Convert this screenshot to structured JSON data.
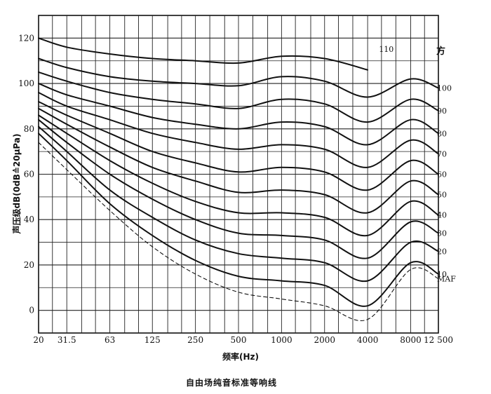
{
  "chart_data": {
    "type": "line",
    "title": "",
    "caption": "自由场纯音标准等响线",
    "xlabel": "频率(Hz)",
    "ylabel": "声压级dB(0dB≙20μPa)",
    "unit_label": "方",
    "x_scale": "log",
    "xlim": [
      20,
      12500
    ],
    "ylim": [
      -10,
      130
    ],
    "grid": true,
    "x_ticks": [
      {
        "value": 20,
        "label": "20"
      },
      {
        "value": 31.5,
        "label": "31.5"
      },
      {
        "value": 63,
        "label": "63"
      },
      {
        "value": 125,
        "label": "125"
      },
      {
        "value": 250,
        "label": "250"
      },
      {
        "value": 500,
        "label": "500"
      },
      {
        "value": 1000,
        "label": "1000"
      },
      {
        "value": 2000,
        "label": "2000"
      },
      {
        "value": 4000,
        "label": "4000"
      },
      {
        "value": 8000,
        "label": "8000"
      },
      {
        "value": 12500,
        "label": "12 500"
      }
    ],
    "y_ticks": [
      0,
      20,
      40,
      60,
      80,
      100,
      120
    ],
    "x": [
      20,
      31.5,
      63,
      125,
      250,
      500,
      1000,
      2000,
      4000,
      8000,
      12500
    ],
    "series": [
      {
        "name": "MAF",
        "dashed": true,
        "values": [
          74,
          62,
          44,
          28,
          16,
          8,
          5,
          2,
          -4,
          18,
          14
        ]
      },
      {
        "name": "10",
        "values": [
          78,
          66,
          47,
          33,
          22,
          15,
          13,
          11,
          2,
          21,
          16
        ]
      },
      {
        "name": "20",
        "values": [
          81,
          70,
          53,
          41,
          31,
          25,
          23,
          21,
          13,
          30,
          26
        ]
      },
      {
        "name": "30",
        "values": [
          84,
          74,
          60,
          49,
          40,
          34,
          33,
          31,
          23,
          39,
          34
        ]
      },
      {
        "name": "40",
        "values": [
          86,
          78,
          66,
          56,
          48,
          43,
          43,
          41,
          33,
          48,
          42
        ]
      },
      {
        "name": "50",
        "values": [
          89,
          82,
          72,
          63,
          57,
          52,
          53,
          51,
          43,
          57,
          51
        ]
      },
      {
        "name": "60",
        "values": [
          92,
          86,
          78,
          70,
          65,
          61,
          63,
          61,
          53,
          66,
          60
        ]
      },
      {
        "name": "70",
        "values": [
          96,
          90,
          84,
          78,
          74,
          71,
          73,
          71,
          63,
          75,
          69
        ]
      },
      {
        "name": "80",
        "values": [
          100,
          95,
          90,
          85,
          82,
          80,
          83,
          81,
          73,
          84,
          78
        ]
      },
      {
        "name": "90",
        "values": [
          105,
          101,
          96,
          93,
          91,
          89,
          93,
          91,
          83,
          93,
          88
        ]
      },
      {
        "name": "100",
        "values": [
          111,
          107,
          103,
          101,
          100,
          99,
          103,
          101,
          94,
          102,
          98
        ]
      },
      {
        "name": "110",
        "values": [
          120,
          116,
          113,
          111,
          110,
          109,
          112,
          111,
          106,
          null,
          null
        ]
      }
    ]
  }
}
